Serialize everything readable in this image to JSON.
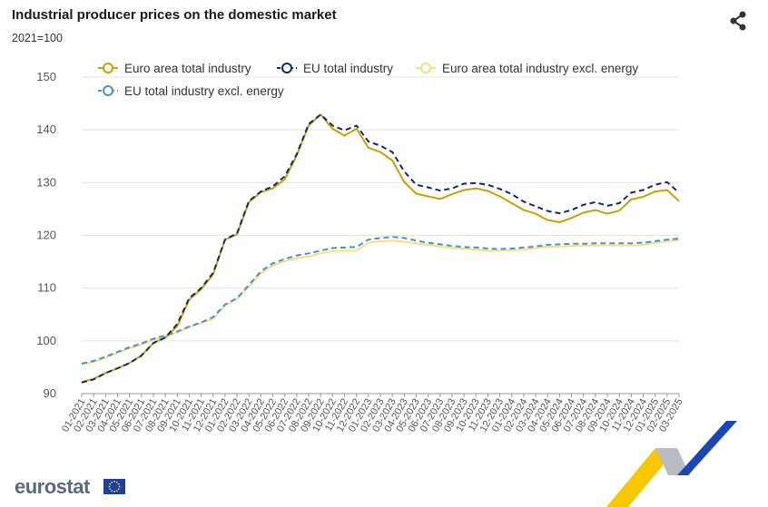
{
  "header": {
    "title": "Industrial producer prices on the domestic market",
    "subtitle": "2021=100",
    "share_icon": "share-icon"
  },
  "footer": {
    "logo_text": "eurostat",
    "flag_icon": "eu-flag-icon"
  },
  "chart_data": {
    "type": "line",
    "title": "Industrial producer prices on the domestic market",
    "subtitle": "2021=100",
    "ylim": [
      90,
      150
    ],
    "yticks": [
      90,
      100,
      110,
      120,
      130,
      140,
      150
    ],
    "grid": true,
    "legend_position": "top",
    "categories": [
      "01-2021",
      "02-2021",
      "03-2021",
      "04-2021",
      "05-2021",
      "06-2021",
      "07-2021",
      "08-2021",
      "09-2021",
      "10-2021",
      "11-2021",
      "12-2021",
      "01-2022",
      "02-2022",
      "03-2022",
      "04-2022",
      "05-2022",
      "06-2022",
      "07-2022",
      "08-2022",
      "09-2022",
      "10-2022",
      "11-2022",
      "12-2022",
      "01-2023",
      "02-2023",
      "03-2023",
      "04-2023",
      "05-2023",
      "06-2023",
      "07-2023",
      "08-2023",
      "09-2023",
      "10-2023",
      "11-2023",
      "12-2023",
      "01-2024",
      "02-2024",
      "03-2024",
      "04-2024",
      "05-2024",
      "06-2024",
      "07-2024",
      "08-2024",
      "09-2024",
      "10-2024",
      "11-2024",
      "12-2024",
      "01-2025",
      "02-2025",
      "03-2025"
    ],
    "series": [
      {
        "name": "Euro area total industry",
        "color": "#c9a100",
        "dashed": false,
        "values": [
          92.2,
          92.8,
          93.9,
          94.8,
          95.8,
          97.2,
          99.6,
          100.6,
          102.8,
          107.8,
          109.8,
          112.6,
          119.2,
          120.2,
          126.3,
          128.2,
          128.9,
          130.6,
          135.2,
          140.8,
          142.9,
          140.2,
          138.9,
          140.2,
          136.6,
          135.8,
          134.2,
          130.1,
          127.9,
          127.4,
          126.9,
          127.8,
          128.6,
          128.9,
          128.4,
          127.4,
          126.1,
          124.8,
          124.1,
          122.9,
          122.5,
          123.3,
          124.3,
          124.8,
          124.1,
          124.7,
          126.8,
          127.3,
          128.3,
          128.6,
          126.5
        ]
      },
      {
        "name": "EU total industry",
        "color": "#0e2d6d",
        "dashed": true,
        "values": [
          92.1,
          92.7,
          93.9,
          94.8,
          95.8,
          97.2,
          99.6,
          100.6,
          103.2,
          108.1,
          110.0,
          112.9,
          119.2,
          120.4,
          126.5,
          128.3,
          129.3,
          131.2,
          135.4,
          141.1,
          142.9,
          140.8,
          139.9,
          140.8,
          137.8,
          137.0,
          135.8,
          132.1,
          129.6,
          129.1,
          128.5,
          128.9,
          129.8,
          129.9,
          129.6,
          128.8,
          127.8,
          126.4,
          125.5,
          124.6,
          124.2,
          124.8,
          125.8,
          126.3,
          125.6,
          126.1,
          128.1,
          128.6,
          129.6,
          130.1,
          128.1
        ]
      },
      {
        "name": "Euro area total industry excl. energy",
        "color": "#f5e07a",
        "dashed": false,
        "values": [
          95.5,
          96.0,
          96.8,
          97.7,
          98.6,
          99.3,
          100.2,
          100.8,
          101.6,
          102.6,
          103.4,
          104.2,
          106.7,
          107.9,
          110.3,
          112.8,
          114.3,
          115.1,
          115.7,
          116.0,
          116.6,
          117.0,
          117.1,
          117.1,
          118.6,
          118.9,
          119.0,
          118.8,
          118.5,
          118.2,
          117.9,
          117.6,
          117.5,
          117.3,
          117.1,
          117.1,
          117.2,
          117.3,
          117.6,
          117.8,
          117.9,
          118.0,
          118.1,
          118.1,
          118.1,
          118.1,
          118.1,
          118.2,
          118.6,
          118.9,
          119.1
        ]
      },
      {
        "name": "EU total industry excl. energy",
        "color": "#4a8fd6",
        "dashed": true,
        "values": [
          95.7,
          96.2,
          97.0,
          97.9,
          98.8,
          99.5,
          100.4,
          101.0,
          101.8,
          102.7,
          103.5,
          104.5,
          106.9,
          108.1,
          110.6,
          113.2,
          114.7,
          115.5,
          116.2,
          116.6,
          117.1,
          117.6,
          117.7,
          117.8,
          119.2,
          119.5,
          119.7,
          119.5,
          119.0,
          118.6,
          118.3,
          118.0,
          117.8,
          117.7,
          117.5,
          117.4,
          117.5,
          117.7,
          117.9,
          118.2,
          118.3,
          118.4,
          118.4,
          118.5,
          118.5,
          118.5,
          118.5,
          118.6,
          118.9,
          119.2,
          119.4
        ]
      }
    ]
  }
}
